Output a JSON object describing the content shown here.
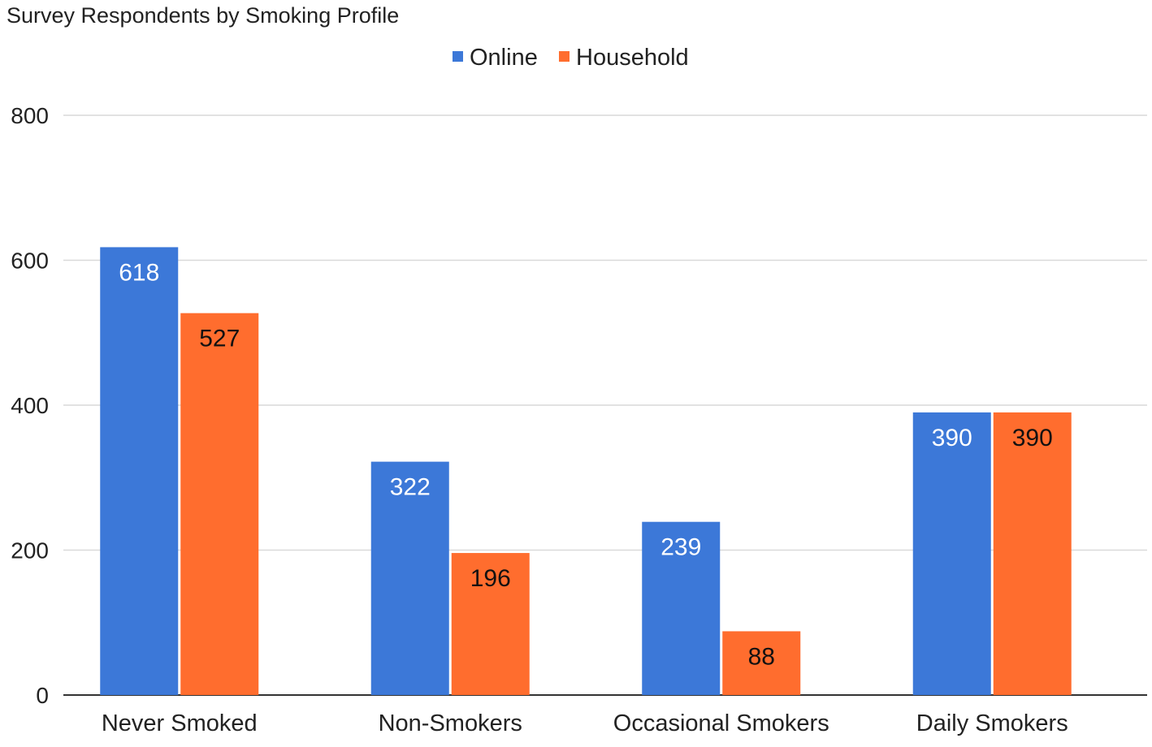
{
  "chart_data": {
    "type": "bar",
    "title": "Survey Respondents by Smoking Profile",
    "xlabel": "",
    "ylabel": "",
    "categories": [
      "Never Smoked",
      "Non-Smokers",
      "Occasional Smokers",
      "Daily Smokers"
    ],
    "series": [
      {
        "name": "Online",
        "values": [
          618,
          322,
          239,
          390
        ],
        "color": "#3c78d8",
        "label_color": "#ffffff"
      },
      {
        "name": "Household",
        "values": [
          527,
          196,
          88,
          390
        ],
        "color": "#ff6d2e",
        "label_color": "#111111"
      }
    ],
    "ylim": [
      0,
      800
    ],
    "yticks": [
      0,
      200,
      400,
      600,
      800
    ],
    "grid": true,
    "legend_position": "top-center",
    "data_labels": true,
    "colors": {
      "gridline": "#d9d9d9",
      "axis": "#333333",
      "text": "#222222"
    }
  }
}
